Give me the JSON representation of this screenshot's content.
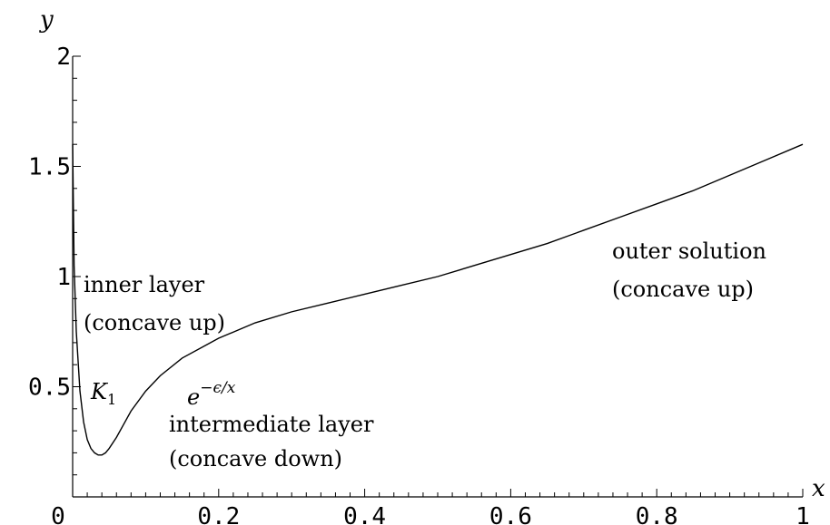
{
  "chart_data": {
    "type": "line",
    "title": "",
    "xlabel": "x",
    "ylabel": "y",
    "xlim": [
      0,
      1
    ],
    "ylim": [
      0,
      2
    ],
    "grid": false,
    "x_ticks": [
      {
        "value": 0,
        "label": "0"
      },
      {
        "value": 0.2,
        "label": "0.2"
      },
      {
        "value": 0.4,
        "label": "0.4"
      },
      {
        "value": 0.6,
        "label": "0.6"
      },
      {
        "value": 0.8,
        "label": "0.8"
      },
      {
        "value": 1,
        "label": "1"
      }
    ],
    "y_ticks": [
      {
        "value": 0.5,
        "label": "0.5"
      },
      {
        "value": 1,
        "label": "1"
      },
      {
        "value": 1.5,
        "label": "1.5"
      },
      {
        "value": 2,
        "label": "2"
      }
    ],
    "series": [
      {
        "x": [
          0.0,
          0.002,
          0.005,
          0.01,
          0.015,
          0.02,
          0.025,
          0.03,
          0.035,
          0.04,
          0.045,
          0.05,
          0.06,
          0.07,
          0.08,
          0.1,
          0.12,
          0.15,
          0.2,
          0.25,
          0.3,
          0.35,
          0.4,
          0.45,
          0.5,
          0.55,
          0.6,
          0.65,
          0.7,
          0.75,
          0.8,
          0.85,
          0.9,
          0.95,
          1.0
        ],
        "y": [
          1.6,
          1.05,
          0.75,
          0.48,
          0.34,
          0.26,
          0.22,
          0.2,
          0.19,
          0.19,
          0.2,
          0.22,
          0.27,
          0.33,
          0.39,
          0.48,
          0.55,
          0.63,
          0.72,
          0.79,
          0.84,
          0.88,
          0.92,
          0.96,
          1.0,
          1.05,
          1.1,
          1.15,
          1.21,
          1.27,
          1.33,
          1.39,
          1.46,
          1.53,
          1.6
        ]
      }
    ],
    "annotations": {
      "inner_line1": "inner layer",
      "inner_line2": "(concave up)",
      "k1_letter": "K",
      "k1_sub": "1",
      "exp_base": "e",
      "exp_power": "−ϵ/x",
      "intermediate_line1": "intermediate layer",
      "intermediate_line2": "(concave down)",
      "outer_line1": "outer solution",
      "outer_line2": "(concave up)"
    }
  }
}
